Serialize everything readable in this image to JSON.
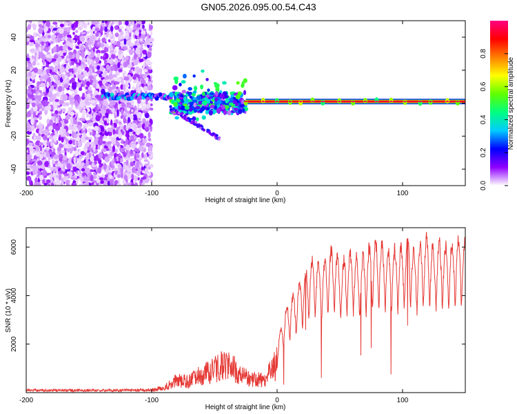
{
  "title": "GN05.2026.095.00.54.C43",
  "colors": {
    "signal": "#e53935",
    "frame": "#000000"
  },
  "colorbar": {
    "label": "Normalized spectral amplitude",
    "ticks": [
      "0.0",
      "0.2",
      "0.4",
      "0.6",
      "0.8"
    ],
    "stops": [
      "#ffffff",
      "#9000ff",
      "#0000ff",
      "#00ccff",
      "#00ff80",
      "#60ff00",
      "#ffff00",
      "#ff8000",
      "#ff0000",
      "#ff0080"
    ]
  },
  "chart_data": [
    {
      "type": "heatmap",
      "title": "GN05.2026.095.00.54.C43",
      "xlabel": "Height of straight line (km)",
      "ylabel": "Frequency (Hz)",
      "xlim": [
        -200,
        150
      ],
      "ylim": [
        -50,
        50
      ],
      "x_ticks": [
        "-200",
        "-100",
        "0",
        "100"
      ],
      "y_ticks": [
        "-40",
        "-20",
        "0",
        "20",
        "40"
      ],
      "colorbar_label": "Normalized spectral amplitude",
      "features": [
        {
          "x_range": [
            -200,
            -100
          ],
          "y_range": [
            -50,
            50
          ],
          "kind": "noise",
          "amplitude": 0.15
        },
        {
          "x_range": [
            -140,
            -85
          ],
          "y_center": 4,
          "kind": "track",
          "amplitude": 0.35
        },
        {
          "x_range": [
            -85,
            -25
          ],
          "y_center": 0,
          "kind": "scatter",
          "amplitude": 0.5
        },
        {
          "x_range": [
            -85,
            -45
          ],
          "y_start": -3,
          "y_end": -22,
          "kind": "branch",
          "amplitude": 0.2
        },
        {
          "x_range": [
            -25,
            150
          ],
          "y_center": 1,
          "kind": "line",
          "amplitude": 1.0
        }
      ]
    },
    {
      "type": "line",
      "xlabel": "Height of straight line (km)",
      "ylabel": "SNR (10 * v/v)",
      "xlim": [
        -200,
        150
      ],
      "ylim": [
        0,
        6800
      ],
      "x_ticks": [
        "-200",
        "-100",
        "0",
        "100"
      ],
      "y_ticks": [
        "2000",
        "4000",
        "6000"
      ],
      "envelope": {
        "x": [
          -200,
          -160,
          -120,
          -100,
          -90,
          -80,
          -70,
          -60,
          -50,
          -40,
          -30,
          -20,
          -10,
          0,
          5,
          10,
          15,
          20,
          25,
          30,
          35,
          40,
          45,
          50,
          55,
          60,
          65,
          70,
          75,
          80,
          85,
          90,
          95,
          100,
          105,
          110,
          115,
          120,
          125,
          130,
          135,
          140,
          145,
          150
        ],
        "y": [
          150,
          150,
          150,
          170,
          320,
          800,
          750,
          1200,
          1500,
          1900,
          1300,
          900,
          800,
          2000,
          3400,
          4000,
          4400,
          5000,
          5600,
          5700,
          5500,
          5900,
          6300,
          5600,
          5800,
          6100,
          5700,
          6000,
          6400,
          6500,
          6300,
          6100,
          6200,
          6300,
          6700,
          6000,
          6400,
          6800,
          6200,
          6500,
          6300,
          6500,
          6600,
          6400
        ]
      }
    }
  ]
}
